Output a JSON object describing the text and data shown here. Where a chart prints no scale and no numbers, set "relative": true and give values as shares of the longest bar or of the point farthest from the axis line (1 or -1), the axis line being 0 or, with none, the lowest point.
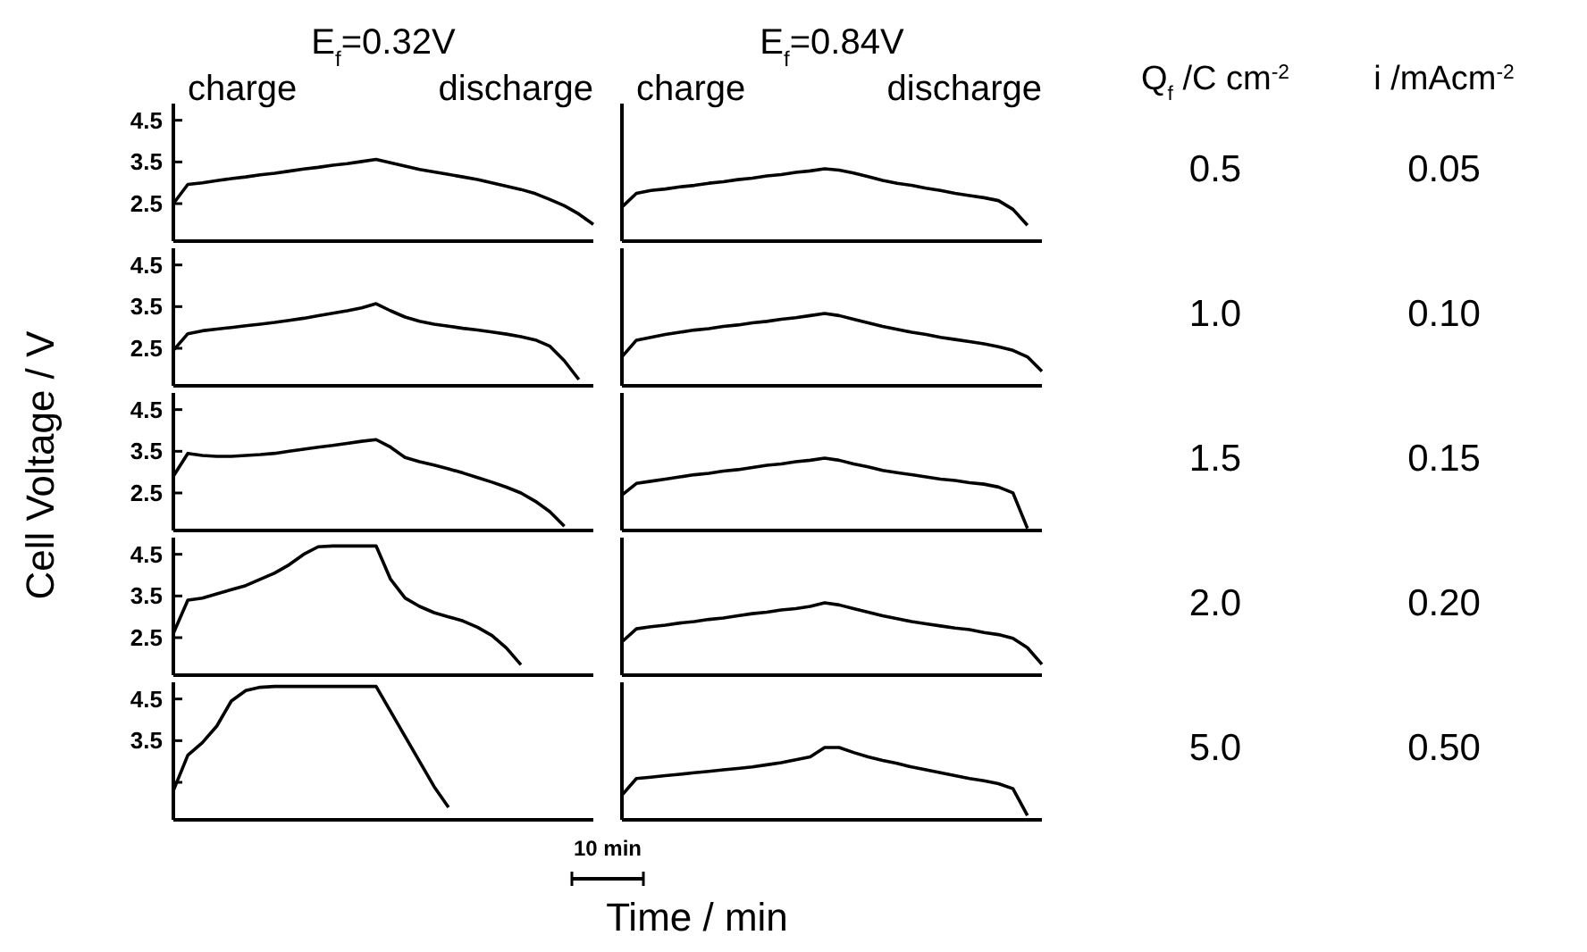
{
  "chart_data": [
    {
      "type": "line",
      "title": "E$_{f}$=0.32V",
      "ylabel": "Cell Voltage / V",
      "annotations": [
        "charge",
        "discharge"
      ],
      "categories": [
        null,
        null,
        null,
        null,
        null,
        null,
        null,
        null,
        null,
        null,
        null,
        null,
        null,
        null,
        null,
        null,
        null,
        null,
        null,
        null,
        null,
        null,
        null,
        null,
        null,
        null,
        null,
        null,
        null,
        null
      ],
      "color": "#000000",
      "ylim": [
        1.6,
        4.9
      ],
      "yticks": [
        4.5,
        3.5,
        2.5
      ],
      "tick_labels": "y",
      "values": [
        2.5,
        2.96,
        3.0,
        3.05,
        3.1,
        3.14,
        3.19,
        3.23,
        3.28,
        3.33,
        3.37,
        3.42,
        3.46,
        3.51,
        3.56,
        3.48,
        3.4,
        3.32,
        3.26,
        3.2,
        3.14,
        3.08,
        3.0,
        2.92,
        2.84,
        2.74,
        2.6,
        2.45,
        2.25,
        2.0
      ]
    },
    {
      "type": "line",
      "title": "E$_{f}$=0.84V",
      "annotations": [
        "charge",
        "discharge",
        "Q$_{f}$ /C cm$^{-2}$",
        "i /mAcm$^{-2}$",
        "0.5",
        "0.05"
      ],
      "categories": [
        null,
        null,
        null,
        null,
        null,
        null,
        null,
        null,
        null,
        null,
        null,
        null,
        null,
        null,
        null,
        null,
        null,
        null,
        null,
        null,
        null,
        null,
        null,
        null,
        null,
        null,
        null,
        null,
        null,
        null
      ],
      "color": "#000000",
      "relative": true,
      "values": [
        0.47,
        0.66,
        0.7,
        0.72,
        0.75,
        0.77,
        0.8,
        0.82,
        0.85,
        0.87,
        0.9,
        0.92,
        0.95,
        0.97,
        1,
        0.98,
        0.94,
        0.89,
        0.84,
        0.8,
        0.77,
        0.73,
        0.7,
        0.66,
        0.63,
        0.6,
        0.56,
        0.44,
        0.22,
        null
      ]
    },
    {
      "type": "line",
      "categories": [
        null,
        null,
        null,
        null,
        null,
        null,
        null,
        null,
        null,
        null,
        null,
        null,
        null,
        null,
        null,
        null,
        null,
        null,
        null,
        null,
        null,
        null,
        null,
        null,
        null,
        null,
        null,
        null,
        null,
        null
      ],
      "color": "#000000",
      "ylim": [
        1.6,
        4.9
      ],
      "yticks": [
        4.5,
        3.5,
        2.5
      ],
      "tick_labels": "y",
      "values": [
        2.45,
        2.85,
        2.92,
        2.96,
        3.0,
        3.04,
        3.08,
        3.12,
        3.17,
        3.22,
        3.28,
        3.34,
        3.4,
        3.47,
        3.57,
        3.4,
        3.25,
        3.15,
        3.08,
        3.03,
        2.98,
        2.94,
        2.89,
        2.84,
        2.78,
        2.7,
        2.55,
        2.2,
        1.75,
        null
      ]
    },
    {
      "type": "line",
      "annotations": [
        "1.0",
        "0.10"
      ],
      "categories": [
        null,
        null,
        null,
        null,
        null,
        null,
        null,
        null,
        null,
        null,
        null,
        null,
        null,
        null,
        null,
        null,
        null,
        null,
        null,
        null,
        null,
        null,
        null,
        null,
        null,
        null,
        null,
        null,
        null,
        null
      ],
      "color": "#000000",
      "relative": true,
      "values": [
        0.4,
        0.63,
        0.67,
        0.71,
        0.74,
        0.77,
        0.79,
        0.82,
        0.84,
        0.87,
        0.89,
        0.92,
        0.94,
        0.97,
        1,
        0.97,
        0.92,
        0.87,
        0.82,
        0.78,
        0.74,
        0.71,
        0.67,
        0.64,
        0.61,
        0.58,
        0.54,
        0.49,
        0.4,
        0.2
      ]
    },
    {
      "type": "line",
      "categories": [
        null,
        null,
        null,
        null,
        null,
        null,
        null,
        null,
        null,
        null,
        null,
        null,
        null,
        null,
        null,
        null,
        null,
        null,
        null,
        null,
        null,
        null,
        null,
        null,
        null,
        null,
        null,
        null,
        null,
        null
      ],
      "color": "#000000",
      "ylim": [
        1.6,
        4.9
      ],
      "yticks": [
        4.5,
        3.5,
        2.5
      ],
      "tick_labels": "y",
      "values": [
        2.9,
        3.45,
        3.4,
        3.38,
        3.38,
        3.4,
        3.42,
        3.45,
        3.5,
        3.55,
        3.6,
        3.64,
        3.69,
        3.74,
        3.78,
        3.6,
        3.35,
        3.25,
        3.17,
        3.08,
        2.98,
        2.87,
        2.76,
        2.64,
        2.5,
        2.3,
        2.05,
        1.7,
        null,
        null
      ]
    },
    {
      "type": "line",
      "annotations": [
        "1.5",
        "0.15"
      ],
      "categories": [
        null,
        null,
        null,
        null,
        null,
        null,
        null,
        null,
        null,
        null,
        null,
        null,
        null,
        null,
        null,
        null,
        null,
        null,
        null,
        null,
        null,
        null,
        null,
        null,
        null,
        null,
        null,
        null,
        null,
        null
      ],
      "color": "#000000",
      "relative": true,
      "values": [
        0.49,
        0.65,
        0.68,
        0.71,
        0.74,
        0.77,
        0.79,
        0.82,
        0.84,
        0.87,
        0.9,
        0.92,
        0.95,
        0.97,
        1,
        0.97,
        0.92,
        0.88,
        0.83,
        0.8,
        0.77,
        0.74,
        0.71,
        0.69,
        0.66,
        0.64,
        0.6,
        0.52,
        0.03,
        null
      ]
    },
    {
      "type": "line",
      "categories": [
        null,
        null,
        null,
        null,
        null,
        null,
        null,
        null,
        null,
        null,
        null,
        null,
        null,
        null,
        null,
        null,
        null,
        null,
        null,
        null,
        null,
        null,
        null,
        null,
        null,
        null,
        null,
        null,
        null,
        null
      ],
      "color": "#000000",
      "ylim": [
        1.6,
        4.9
      ],
      "yticks": [
        4.5,
        3.5,
        2.5
      ],
      "tick_labels": "y",
      "values": [
        2.6,
        3.4,
        3.45,
        3.55,
        3.65,
        3.75,
        3.9,
        4.05,
        4.25,
        4.5,
        4.68,
        4.7,
        4.7,
        4.7,
        4.7,
        3.9,
        3.45,
        3.25,
        3.1,
        3.0,
        2.9,
        2.75,
        2.55,
        2.25,
        1.85,
        null,
        null,
        null,
        null,
        null
      ]
    },
    {
      "type": "line",
      "annotations": [
        "2.0",
        "0.20"
      ],
      "categories": [
        null,
        null,
        null,
        null,
        null,
        null,
        null,
        null,
        null,
        null,
        null,
        null,
        null,
        null,
        null,
        null,
        null,
        null,
        null,
        null,
        null,
        null,
        null,
        null,
        null,
        null,
        null,
        null,
        null,
        null
      ],
      "color": "#000000",
      "relative": true,
      "values": [
        0.46,
        0.64,
        0.67,
        0.69,
        0.72,
        0.74,
        0.77,
        0.79,
        0.82,
        0.85,
        0.87,
        0.9,
        0.92,
        0.95,
        1,
        0.97,
        0.92,
        0.87,
        0.82,
        0.78,
        0.74,
        0.71,
        0.68,
        0.65,
        0.63,
        0.59,
        0.56,
        0.51,
        0.38,
        0.15
      ]
    },
    {
      "type": "line",
      "xlabel": "Time / min",
      "annotations": [
        "10 min"
      ],
      "categories": [
        null,
        null,
        null,
        null,
        null,
        null,
        null,
        null,
        null,
        null,
        null,
        null,
        null,
        null,
        null,
        null,
        null,
        null,
        null,
        null,
        null,
        null,
        null,
        null,
        null,
        null,
        null,
        null,
        null,
        null
      ],
      "color": "#000000",
      "ylim": [
        1.6,
        4.9
      ],
      "yticks": [
        4.5,
        3.5,
        {
          "value": 2.5,
          "label": null
        }
      ],
      "tick_labels": "y",
      "values": [
        2.3,
        3.15,
        3.45,
        3.85,
        4.45,
        4.7,
        4.78,
        4.8,
        4.8,
        4.8,
        4.8,
        4.8,
        4.8,
        4.8,
        4.8,
        4.2,
        3.6,
        3.0,
        2.4,
        1.9,
        null,
        null,
        null,
        null,
        null,
        null,
        null,
        null,
        null,
        null
      ]
    },
    {
      "type": "line",
      "annotations": [
        "5.0",
        "0.50"
      ],
      "categories": [
        null,
        null,
        null,
        null,
        null,
        null,
        null,
        null,
        null,
        null,
        null,
        null,
        null,
        null,
        null,
        null,
        null,
        null,
        null,
        null,
        null,
        null,
        null,
        null,
        null,
        null,
        null,
        null,
        null,
        null
      ],
      "color": "#000000",
      "relative": true,
      "values": [
        0.34,
        0.57,
        0.59,
        0.61,
        0.63,
        0.65,
        0.67,
        0.69,
        0.71,
        0.73,
        0.76,
        0.79,
        0.83,
        0.87,
        1,
        1,
        0.93,
        0.87,
        0.82,
        0.78,
        0.73,
        0.69,
        0.65,
        0.61,
        0.57,
        0.54,
        0.5,
        0.43,
        0.06,
        null
      ]
    }
  ]
}
